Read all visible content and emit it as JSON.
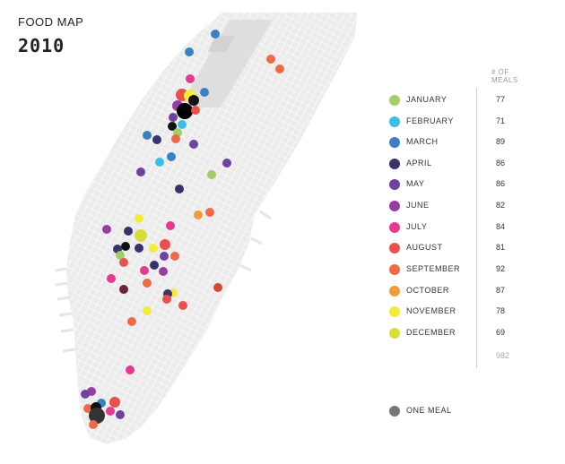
{
  "title": "FOOD MAP",
  "year": "2010",
  "legend": {
    "count_header_line1": "# OF",
    "count_header_line2": "MEALS",
    "total": "982",
    "months": [
      {
        "label": "JANUARY",
        "count": "77",
        "color": "#a3cc6a"
      },
      {
        "label": "FEBRUARY",
        "count": "71",
        "color": "#3fbde6"
      },
      {
        "label": "MARCH",
        "count": "89",
        "color": "#3b80c4"
      },
      {
        "label": "APRIL",
        "count": "86",
        "color": "#39326b"
      },
      {
        "label": "MAY",
        "count": "86",
        "color": "#6e43a0"
      },
      {
        "label": "JUNE",
        "count": "82",
        "color": "#9a3da3"
      },
      {
        "label": "JULY",
        "count": "84",
        "color": "#e6398f"
      },
      {
        "label": "AUGUST",
        "count": "81",
        "color": "#e8524c"
      },
      {
        "label": "SEPTEMBER",
        "count": "92",
        "color": "#ee6a47"
      },
      {
        "label": "OCTOBER",
        "count": "87",
        "color": "#f19b3b"
      },
      {
        "label": "NOVEMBER",
        "count": "78",
        "color": "#f3ec3a"
      },
      {
        "label": "DECEMBER",
        "count": "69",
        "color": "#d9dd3c"
      }
    ],
    "one_meal_label": "ONE MEAL",
    "one_meal_color": "#777777"
  }
}
